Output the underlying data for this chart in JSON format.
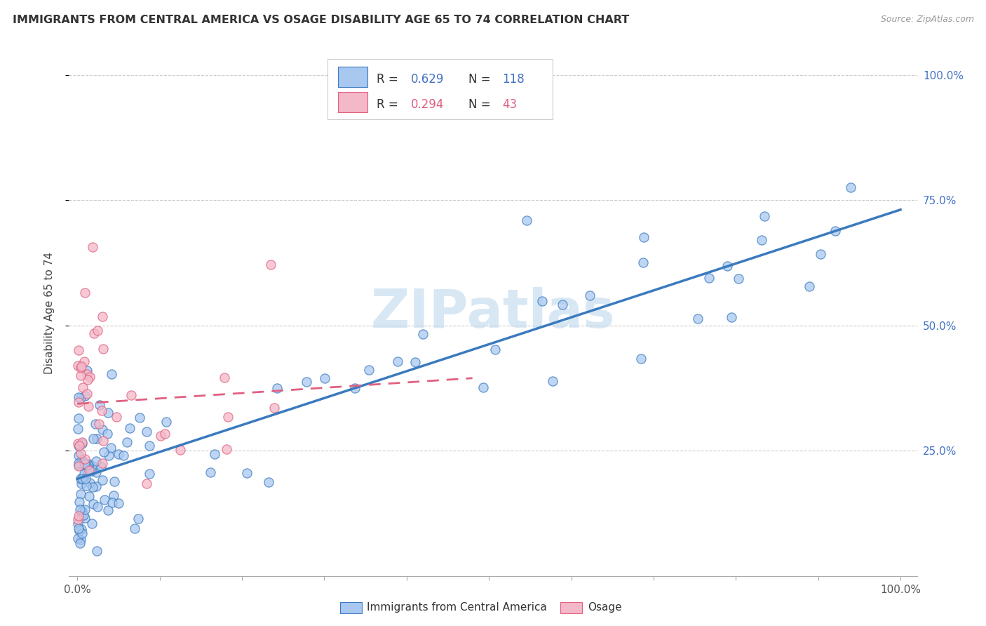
{
  "title": "IMMIGRANTS FROM CENTRAL AMERICA VS OSAGE DISABILITY AGE 65 TO 74 CORRELATION CHART",
  "source": "Source: ZipAtlas.com",
  "ylabel": "Disability Age 65 to 74",
  "blue_R": 0.629,
  "blue_N": 118,
  "pink_R": 0.294,
  "pink_N": 43,
  "blue_color": "#a8c8f0",
  "pink_color": "#f4b8c8",
  "blue_line_color": "#3a7abf",
  "pink_line_color": "#e06080",
  "legend_label_blue": "Immigrants from Central America",
  "legend_label_pink": "Osage",
  "watermark": "ZIPatlas",
  "blue_scatter_seed": 42,
  "pink_scatter_seed": 99,
  "xlim": [
    0.0,
    1.0
  ],
  "ylim": [
    0.0,
    1.05
  ],
  "yticks": [
    0.25,
    0.5,
    0.75,
    1.0
  ],
  "ytick_labels": [
    "25.0%",
    "50.0%",
    "75.0%",
    "100.0%"
  ],
  "xtick_labels": [
    "0.0%",
    "100.0%"
  ],
  "blue_intercept": 0.195,
  "blue_slope": 0.52,
  "pink_intercept": 0.33,
  "pink_slope": 0.18
}
